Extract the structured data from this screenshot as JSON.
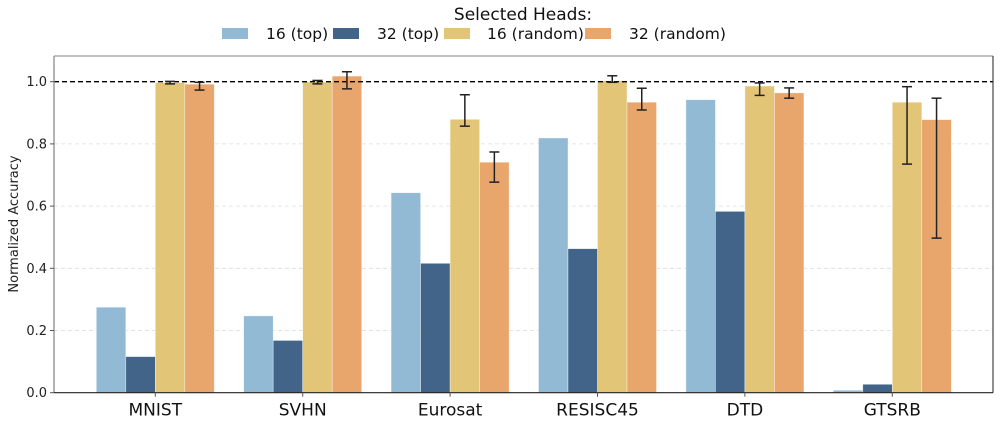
{
  "chart_data": {
    "type": "bar",
    "title": "",
    "xlabel": "",
    "ylabel": "Normalized Accuracy",
    "ylim": [
      0,
      1.08
    ],
    "yticks": [
      0.0,
      0.2,
      0.4,
      0.6,
      0.8,
      1.0
    ],
    "ytick_labels": [
      "0.0",
      "0.2",
      "0.4",
      "0.6",
      "0.8",
      "1.0"
    ],
    "grid": "y-dashed",
    "reference_line": {
      "y": 1.0,
      "style": "dashed",
      "color": "#000000"
    },
    "categories": [
      "MNIST",
      "SVHN",
      "Eurosat",
      "RESISC45",
      "DTD",
      "GTSRB"
    ],
    "legend": {
      "title": "Selected Heads:",
      "placement": "top-center",
      "ncol": 4
    },
    "series": [
      {
        "name": "16 (top)",
        "color": "#93bad5",
        "values": [
          0.275,
          0.247,
          0.643,
          0.819,
          0.942,
          0.008
        ],
        "errors": null
      },
      {
        "name": "32 (top)",
        "color": "#416488",
        "values": [
          0.116,
          0.168,
          0.416,
          0.463,
          0.583,
          0.027
        ],
        "errors": null
      },
      {
        "name": "16 (random)",
        "color": "#e2c576",
        "values": [
          0.997,
          0.999,
          0.879,
          1.003,
          0.986,
          0.934
        ],
        "errors": [
          [
            0.993,
            1.001
          ],
          [
            0.993,
            1.004
          ],
          [
            0.857,
            0.958
          ],
          [
            0.998,
            1.019
          ],
          [
            0.956,
            0.996
          ],
          [
            0.735,
            0.984
          ]
        ]
      },
      {
        "name": "32 (random)",
        "color": "#e8a66c",
        "values": [
          0.992,
          1.018,
          0.741,
          0.934,
          0.964,
          0.878
        ],
        "errors": [
          [
            0.973,
            0.998
          ],
          [
            0.977,
            1.032
          ],
          [
            0.677,
            0.774
          ],
          [
            0.909,
            0.979
          ],
          [
            0.947,
            0.98
          ],
          [
            0.497,
            0.947
          ]
        ]
      }
    ]
  }
}
